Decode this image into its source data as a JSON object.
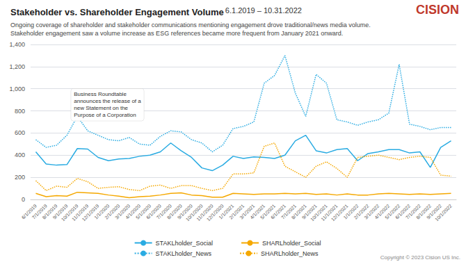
{
  "chart_data": {
    "type": "line",
    "title": "Stakeholder vs. Shareholder Engagement Volume",
    "subtitle": "Ongoing coverage of shareholder and stakeholder communications mentioning engagement drove traditional/news media volume.\nStakeholder engagement saw a volume increase as ESG references became more frequent from January 2021 onward.",
    "annotations": [
      {
        "text": " 6.1.2019 – 10.31.2022"
      },
      {
        "text": "CISION",
        "color": "#c0392b"
      },
      {
        "text": "Copyright © 2023 Cision US Inc."
      },
      {
        "text": "Business Roundtable\nannounces the release of a\nnew Statement on the\nPurpose of a Corporation",
        "x": "9/1/2019",
        "y": 1000
      }
    ],
    "categories": [
      "6/1/2019",
      "7/1/2019",
      "8/1/2019",
      "9/1/2019",
      "10/1/2019",
      "11/1/2019",
      "12/1/2019",
      "1/1/2020",
      "2/1/2020",
      "3/1/2020",
      "4/1/2020",
      "5/1/2020",
      "6/1/2020",
      "7/1/2020",
      "8/1/2020",
      "9/1/2020",
      "10/1/2020",
      "11/1/2020",
      "12/1/2020",
      "1/1/2021",
      "2/1/2021",
      "3/1/2021",
      "4/1/2021",
      "5/1/2021",
      "6/1/2021",
      "7/1/2021",
      "8/1/2021",
      "9/1/2021",
      "10/1/2021",
      "11/1/2021",
      "12/1/2021",
      "1/1/2022",
      "2/1/2022",
      "3/1/2022",
      "4/1/2022",
      "5/1/2022",
      "6/1/2022",
      "7/1/2022",
      "8/1/2022",
      "9/1/2022",
      "10/1/2022"
    ],
    "series": [
      {
        "name": "STAKLholder_Social",
        "color": "#29abe2",
        "line_style": "solid",
        "values": [
          430,
          320,
          310,
          315,
          460,
          455,
          380,
          350,
          365,
          370,
          390,
          400,
          430,
          510,
          440,
          380,
          285,
          260,
          310,
          390,
          370,
          385,
          380,
          370,
          400,
          530,
          580,
          440,
          420,
          450,
          460,
          350,
          415,
          430,
          450,
          450,
          420,
          430,
          290,
          470,
          530
        ]
      },
      {
        "name": "SHARLholder_Social",
        "color": "#f5a800",
        "line_style": "solid",
        "values": [
          55,
          25,
          35,
          30,
          65,
          60,
          55,
          40,
          30,
          15,
          25,
          30,
          40,
          55,
          60,
          40,
          35,
          20,
          20,
          55,
          50,
          45,
          50,
          50,
          55,
          50,
          55,
          45,
          50,
          40,
          50,
          40,
          40,
          50,
          55,
          50,
          45,
          50,
          45,
          50,
          55
        ]
      },
      {
        "name": "STAKLholder_News",
        "color": "#29abe2",
        "line_style": "dotted",
        "values": [
          540,
          470,
          490,
          580,
          750,
          620,
          580,
          540,
          530,
          560,
          500,
          490,
          570,
          620,
          610,
          540,
          510,
          430,
          490,
          640,
          660,
          700,
          1050,
          1120,
          1300,
          960,
          750,
          1130,
          1050,
          720,
          700,
          670,
          700,
          720,
          780,
          1220,
          680,
          660,
          630,
          650,
          650
        ]
      },
      {
        "name": "SHARLholder_News",
        "color": "#f5a800",
        "line_style": "dotted",
        "values": [
          170,
          80,
          120,
          110,
          190,
          160,
          100,
          110,
          115,
          90,
          80,
          120,
          130,
          100,
          125,
          125,
          100,
          80,
          100,
          230,
          230,
          240,
          480,
          510,
          300,
          250,
          200,
          300,
          340,
          280,
          200,
          380,
          390,
          400,
          380,
          360,
          380,
          390,
          380,
          220,
          210
        ]
      }
    ],
    "ylim": [
      0,
      1400
    ],
    "yticks": [
      0,
      200,
      400,
      600,
      800,
      {
        "value": 1000,
        "label": "1,000"
      },
      {
        "value": 1200,
        "label": "1,200"
      },
      {
        "value": 1400,
        "label": "1,400"
      }
    ],
    "grid": true,
    "legend": "bottom"
  }
}
